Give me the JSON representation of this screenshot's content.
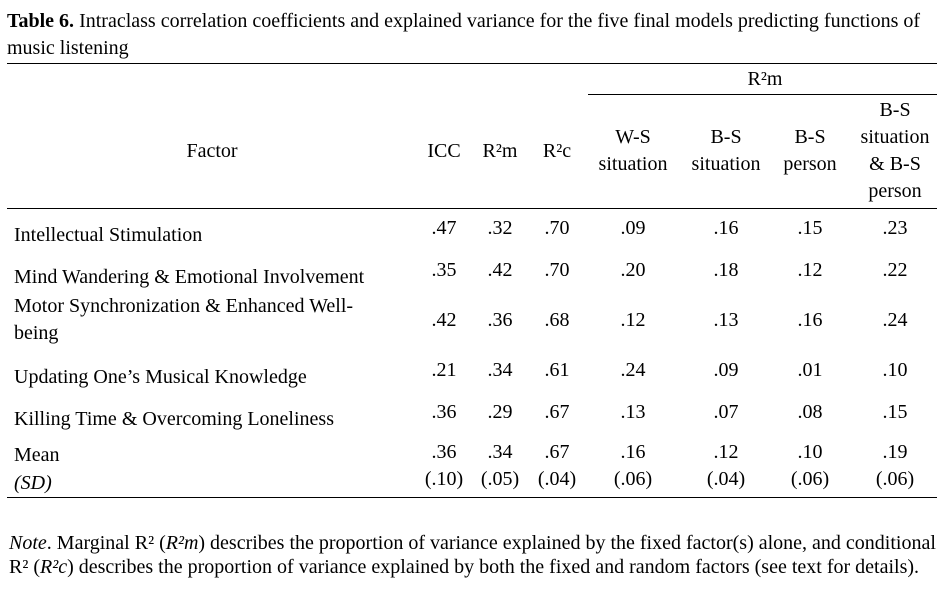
{
  "caption": {
    "label": "Table 6.",
    "text": " Intraclass correlation coefficients and explained variance for the five final models predicting functions of music listening"
  },
  "header": {
    "factor": "Factor",
    "icc": "ICC",
    "r2m": "R²m",
    "r2c": "R²c",
    "group": "R²m",
    "ws_situation": [
      "W-S",
      "situation"
    ],
    "bs_situation": [
      "B-S",
      "situation"
    ],
    "bs_person": [
      "B-S",
      "person"
    ],
    "bs_both": [
      "B-S",
      "situation",
      "& B-S",
      "person"
    ]
  },
  "rows": [
    {
      "factor": [
        "Intellectual Stimulation"
      ],
      "icc": ".47",
      "r2m": ".32",
      "r2c": ".70",
      "ws_situation": ".09",
      "bs_situation": ".16",
      "bs_person": ".15",
      "bs_both": ".23"
    },
    {
      "factor": [
        "Mind Wandering & Emotional Involvement"
      ],
      "icc": ".35",
      "r2m": ".42",
      "r2c": ".70",
      "ws_situation": ".20",
      "bs_situation": ".18",
      "bs_person": ".12",
      "bs_both": ".22"
    },
    {
      "factor": [
        "Motor Synchronization & Enhanced Well-",
        "being"
      ],
      "icc": ".42",
      "r2m": ".36",
      "r2c": ".68",
      "ws_situation": ".12",
      "bs_situation": ".13",
      "bs_person": ".16",
      "bs_both": ".24"
    },
    {
      "factor": [
        "Updating One’s Musical Knowledge"
      ],
      "icc": ".21",
      "r2m": ".34",
      "r2c": ".61",
      "ws_situation": ".24",
      "bs_situation": ".09",
      "bs_person": ".01",
      "bs_both": ".10"
    },
    {
      "factor": [
        "Killing Time & Overcoming Loneliness"
      ],
      "icc": ".36",
      "r2m": ".29",
      "r2c": ".67",
      "ws_situation": ".13",
      "bs_situation": ".07",
      "bs_person": ".08",
      "bs_both": ".15"
    }
  ],
  "mean_row": {
    "label": "Mean",
    "sd_label": "(SD)",
    "means": {
      "icc": ".36",
      "r2m": ".34",
      "r2c": ".67",
      "ws_situation": ".16",
      "bs_situation": ".12",
      "bs_person": ".10",
      "bs_both": ".19"
    },
    "sds": {
      "icc": "(.10)",
      "r2m": "(.05)",
      "r2c": "(.04)",
      "ws_situation": "(.06)",
      "bs_situation": "(.04)",
      "bs_person": "(.06)",
      "bs_both": "(.06)"
    }
  },
  "note": {
    "label": "Note",
    "part1": ". Marginal R² (",
    "r2m_italic": "R²m",
    "part2": ") describes the proportion of variance explained by the fixed factor(s) alone, and conditional R² (",
    "r2c_italic": "R²c",
    "part3": ") describes the proportion of variance explained by both the fixed and random factors (see text for details)."
  }
}
